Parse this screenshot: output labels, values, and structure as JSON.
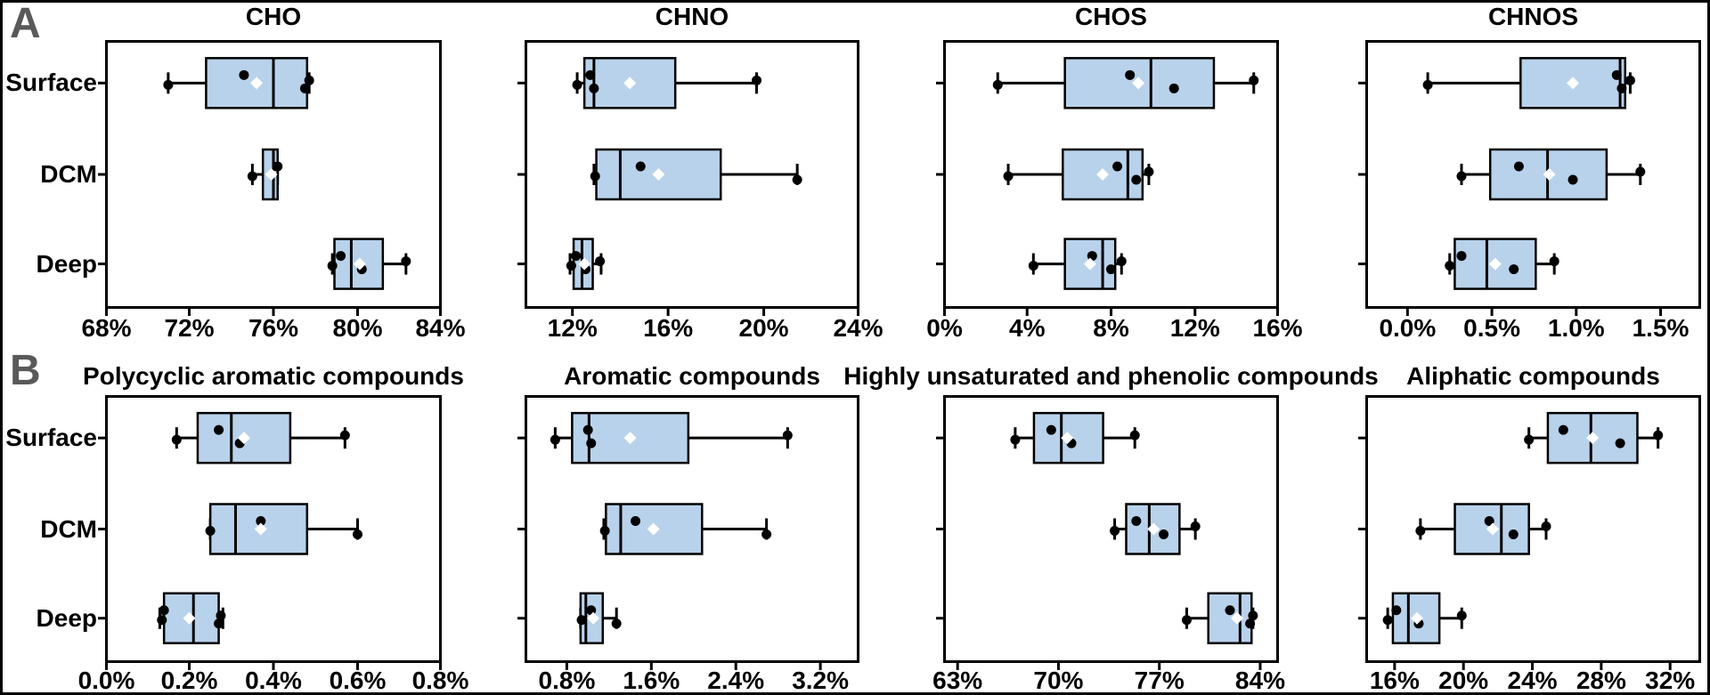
{
  "figure": {
    "panel_labels": [
      "A",
      "B"
    ],
    "categories": [
      "Surface",
      "DCM",
      "Deep"
    ],
    "colors": {
      "box_fill": "#b9d2eb",
      "stroke": "#000000",
      "panel_letter": "#595959",
      "mean_marker": "#ffffff",
      "data_point": "#000000",
      "background": "#ffffff"
    }
  },
  "chart_data": [
    {
      "type": "box",
      "row": "A",
      "title": "CHO",
      "xlim": [
        68,
        84
      ],
      "xtick_values": [
        68,
        72,
        76,
        80,
        84
      ],
      "xtick_labels": [
        "68%",
        "72%",
        "76%",
        "80%",
        "84%"
      ],
      "categories": [
        "Surface",
        "DCM",
        "Deep"
      ],
      "boxes": [
        {
          "category": "Surface",
          "whisker_low": 71.0,
          "q1": 72.8,
          "median": 76.0,
          "q3": 77.6,
          "whisker_high": 77.7,
          "mean": 75.2,
          "points": [
            71.0,
            74.6,
            77.5,
            77.7
          ]
        },
        {
          "category": "DCM",
          "whisker_low": 75.0,
          "q1": 75.5,
          "median": 76.0,
          "q3": 76.2,
          "whisker_high": 76.2,
          "mean": 75.9,
          "points": [
            75.0,
            76.2
          ]
        },
        {
          "category": "Deep",
          "whisker_low": 78.8,
          "q1": 78.9,
          "median": 79.7,
          "q3": 81.2,
          "whisker_high": 82.3,
          "mean": 80.1,
          "points": [
            78.8,
            79.2,
            80.2,
            82.3
          ]
        }
      ]
    },
    {
      "type": "box",
      "row": "A",
      "title": "CHNO",
      "xlim": [
        10,
        24
      ],
      "xtick_values": [
        12,
        16,
        20,
        24
      ],
      "xtick_labels": [
        "12%",
        "16%",
        "20%",
        "24%"
      ],
      "categories": [
        "Surface",
        "DCM",
        "Deep"
      ],
      "boxes": [
        {
          "category": "Surface",
          "whisker_low": 12.2,
          "q1": 12.5,
          "median": 12.9,
          "q3": 16.3,
          "whisker_high": 19.7,
          "mean": 14.4,
          "points": [
            12.2,
            12.75,
            12.9,
            19.7
          ]
        },
        {
          "category": "DCM",
          "whisker_low": 12.9,
          "q1": 13.0,
          "median": 14.0,
          "q3": 18.2,
          "whisker_high": 21.4,
          "mean": 15.6,
          "points": [
            12.95,
            14.85,
            21.4
          ]
        },
        {
          "category": "Deep",
          "whisker_low": 11.9,
          "q1": 12.05,
          "median": 12.4,
          "q3": 12.85,
          "whisker_high": 13.2,
          "mean": 12.5,
          "points": [
            11.95,
            12.15,
            12.55,
            13.15
          ]
        }
      ]
    },
    {
      "type": "box",
      "row": "A",
      "title": "CHOS",
      "xlim": [
        0,
        16
      ],
      "xtick_values": [
        0,
        4,
        8,
        12,
        16
      ],
      "xtick_labels": [
        "0%",
        "4%",
        "8%",
        "12%",
        "16%"
      ],
      "categories": [
        "Surface",
        "DCM",
        "Deep"
      ],
      "boxes": [
        {
          "category": "Surface",
          "whisker_low": 2.6,
          "q1": 5.8,
          "median": 9.9,
          "q3": 12.9,
          "whisker_high": 14.8,
          "mean": 9.3,
          "points": [
            2.6,
            8.9,
            11.0,
            14.8
          ]
        },
        {
          "category": "DCM",
          "whisker_low": 3.1,
          "q1": 5.7,
          "median": 8.8,
          "q3": 9.5,
          "whisker_high": 9.8,
          "mean": 7.6,
          "points": [
            3.1,
            8.3,
            9.2,
            9.8
          ]
        },
        {
          "category": "Deep",
          "whisker_low": 4.3,
          "q1": 5.8,
          "median": 7.6,
          "q3": 8.2,
          "whisker_high": 8.5,
          "mean": 7.0,
          "points": [
            4.3,
            7.1,
            8.0,
            8.5
          ]
        }
      ]
    },
    {
      "type": "box",
      "row": "A",
      "title": "CHNOS",
      "xlim": [
        -0.25,
        1.74
      ],
      "xtick_values": [
        0.0,
        0.5,
        1.0,
        1.5
      ],
      "xtick_labels": [
        "0.0%",
        "0.5%",
        "1.0%",
        "1.5%"
      ],
      "categories": [
        "Surface",
        "DCM",
        "Deep"
      ],
      "boxes": [
        {
          "category": "Surface",
          "whisker_low": 0.12,
          "q1": 0.67,
          "median": 1.26,
          "q3": 1.29,
          "whisker_high": 1.32,
          "mean": 0.98,
          "points": [
            0.12,
            1.24,
            1.27,
            1.32
          ]
        },
        {
          "category": "DCM",
          "whisker_low": 0.32,
          "q1": 0.49,
          "median": 0.83,
          "q3": 1.18,
          "whisker_high": 1.38,
          "mean": 0.84,
          "points": [
            0.32,
            0.66,
            0.98,
            1.38
          ]
        },
        {
          "category": "Deep",
          "whisker_low": 0.25,
          "q1": 0.28,
          "median": 0.47,
          "q3": 0.76,
          "whisker_high": 0.87,
          "mean": 0.52,
          "points": [
            0.25,
            0.32,
            0.63,
            0.87
          ]
        }
      ]
    },
    {
      "type": "box",
      "row": "B",
      "title": "Polycyclic aromatic compounds",
      "xlim": [
        0,
        0.8
      ],
      "xtick_values": [
        0.0,
        0.2,
        0.4,
        0.6,
        0.8
      ],
      "xtick_labels": [
        "0.0%",
        "0.2%",
        "0.4%",
        "0.6%",
        "0.8%"
      ],
      "categories": [
        "Surface",
        "DCM",
        "Deep"
      ],
      "boxes": [
        {
          "category": "Surface",
          "whisker_low": 0.17,
          "q1": 0.22,
          "median": 0.3,
          "q3": 0.44,
          "whisker_high": 0.57,
          "mean": 0.33,
          "points": [
            0.17,
            0.27,
            0.32,
            0.57
          ]
        },
        {
          "category": "DCM",
          "whisker_low": 0.25,
          "q1": 0.25,
          "median": 0.31,
          "q3": 0.48,
          "whisker_high": 0.6,
          "mean": 0.37,
          "points": [
            0.25,
            0.37,
            0.6
          ]
        },
        {
          "category": "Deep",
          "whisker_low": 0.13,
          "q1": 0.14,
          "median": 0.21,
          "q3": 0.27,
          "whisker_high": 0.28,
          "mean": 0.2,
          "points": [
            0.135,
            0.14,
            0.27,
            0.275
          ]
        }
      ]
    },
    {
      "type": "box",
      "row": "B",
      "title": "Aromatic compounds",
      "xlim": [
        0.4,
        3.57
      ],
      "xtick_values": [
        0.8,
        1.6,
        2.4,
        3.2
      ],
      "xtick_labels": [
        "0.8%",
        "1.6%",
        "2.4%",
        "3.2%"
      ],
      "categories": [
        "Surface",
        "DCM",
        "Deep"
      ],
      "boxes": [
        {
          "category": "Surface",
          "whisker_low": 0.69,
          "q1": 0.85,
          "median": 1.01,
          "q3": 1.95,
          "whisker_high": 2.89,
          "mean": 1.4,
          "points": [
            0.69,
            1.0,
            1.03,
            2.89
          ]
        },
        {
          "category": "DCM",
          "whisker_low": 1.15,
          "q1": 1.17,
          "median": 1.31,
          "q3": 2.08,
          "whisker_high": 2.69,
          "mean": 1.62,
          "points": [
            1.16,
            1.45,
            2.69
          ]
        },
        {
          "category": "Deep",
          "whisker_low": 0.93,
          "q1": 0.93,
          "median": 0.98,
          "q3": 1.14,
          "whisker_high": 1.27,
          "mean": 1.05,
          "points": [
            0.94,
            1.03,
            1.27
          ]
        }
      ]
    },
    {
      "type": "box",
      "row": "B",
      "title": "Highly unsaturated and phenolic compounds",
      "xlim": [
        62,
        85.3
      ],
      "xtick_values": [
        63,
        70,
        77,
        84
      ],
      "xtick_labels": [
        "63%",
        "70%",
        "77%",
        "84%"
      ],
      "categories": [
        "Surface",
        "DCM",
        "Deep"
      ],
      "boxes": [
        {
          "category": "Surface",
          "whisker_low": 67.0,
          "q1": 68.3,
          "median": 70.2,
          "q3": 73.1,
          "whisker_high": 75.3,
          "mean": 70.6,
          "points": [
            67.0,
            69.5,
            70.9,
            75.3
          ]
        },
        {
          "category": "DCM",
          "whisker_low": 73.9,
          "q1": 74.7,
          "median": 76.3,
          "q3": 78.4,
          "whisker_high": 79.5,
          "mean": 76.6,
          "points": [
            73.9,
            75.4,
            77.3,
            79.5
          ]
        },
        {
          "category": "Deep",
          "whisker_low": 78.9,
          "q1": 80.4,
          "median": 82.6,
          "q3": 83.4,
          "whisker_high": 83.5,
          "mean": 82.4,
          "points": [
            78.9,
            81.9,
            83.3,
            83.5
          ]
        }
      ]
    },
    {
      "type": "box",
      "row": "B",
      "title": "Aliphatic compounds",
      "xlim": [
        14.3,
        33.8
      ],
      "xtick_values": [
        16,
        20,
        24,
        28,
        32
      ],
      "xtick_labels": [
        "16%",
        "20%",
        "24%",
        "28%",
        "32%"
      ],
      "categories": [
        "Surface",
        "DCM",
        "Deep"
      ],
      "boxes": [
        {
          "category": "Surface",
          "whisker_low": 23.8,
          "q1": 24.9,
          "median": 27.4,
          "q3": 30.1,
          "whisker_high": 31.3,
          "mean": 27.5,
          "points": [
            23.8,
            25.8,
            29.1,
            31.3
          ]
        },
        {
          "category": "DCM",
          "whisker_low": 17.5,
          "q1": 19.5,
          "median": 22.2,
          "q3": 23.8,
          "whisker_high": 24.8,
          "mean": 21.7,
          "points": [
            17.5,
            21.5,
            22.9,
            24.8
          ]
        },
        {
          "category": "Deep",
          "whisker_low": 15.6,
          "q1": 15.9,
          "median": 16.8,
          "q3": 18.6,
          "whisker_high": 19.9,
          "mean": 17.3,
          "points": [
            15.6,
            16.1,
            17.4,
            19.9
          ]
        }
      ]
    }
  ]
}
